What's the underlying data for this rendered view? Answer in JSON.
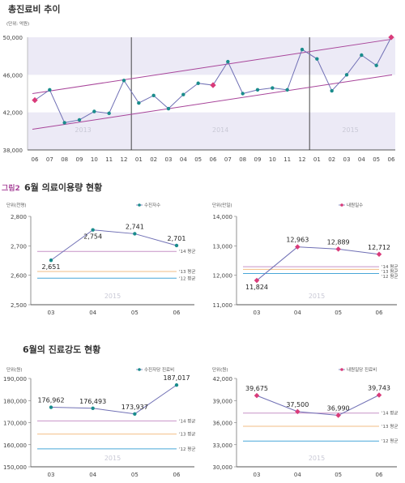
{
  "section_titles": {
    "main": "총진료비 추이",
    "fig2_prefix": "그림2",
    "fig2": "6월 의료이용량 현황",
    "fig3": "6월의 진료강도 현황"
  },
  "colors": {
    "teal": "#1a8c8c",
    "pink": "#d93b7a",
    "trend": "#a8459a",
    "line": "#7070b5",
    "band": "#eceaf6",
    "avg14": "#c792c7",
    "avg13": "#f2be86",
    "avg12": "#49a7d8"
  },
  "chart_data": [
    {
      "id": "total",
      "type": "line",
      "unit_label": "(단위: 억원)",
      "ylim": [
        38000,
        50000
      ],
      "y_ticks": [
        "38,000",
        "42,000",
        "46,000",
        "50,000"
      ],
      "x": [
        "06",
        "07",
        "08",
        "09",
        "10",
        "11",
        "12",
        "01",
        "02",
        "03",
        "04",
        "05",
        "06",
        "07",
        "08",
        "09",
        "10",
        "11",
        "12",
        "01",
        "02",
        "03",
        "04",
        "05",
        "06"
      ],
      "values": [
        43300,
        44400,
        40900,
        41200,
        42100,
        41900,
        45400,
        43000,
        43800,
        42400,
        43900,
        45100,
        44900,
        47400,
        44000,
        44400,
        44600,
        44400,
        48700,
        47700,
        44300,
        46000,
        48100,
        47000,
        50000
      ],
      "june_points": [
        0,
        12,
        24
      ],
      "year_labels": [
        "2013",
        "2014",
        "2015"
      ],
      "trend_upper": [
        44000,
        49800
      ],
      "trend_lower": [
        40200,
        46000
      ]
    },
    {
      "id": "patients",
      "type": "line",
      "unit_label": "단위(천명)",
      "legend": "수진자수",
      "ylim": [
        2500,
        2800
      ],
      "y_ticks": [
        "2,500",
        "2,600",
        "2,700",
        "2,800"
      ],
      "categories": [
        "03",
        "04",
        "05",
        "06"
      ],
      "values": [
        2651,
        2754,
        2741,
        2701
      ],
      "value_labels": [
        "2,651",
        "2,754",
        "2,741",
        "2,701"
      ],
      "year": "2015",
      "averages": [
        {
          "label": "'14 평균",
          "value": 2681
        },
        {
          "label": "'13 평균",
          "value": 2613
        },
        {
          "label": "'12 평균",
          "value": 2590
        }
      ]
    },
    {
      "id": "visits",
      "type": "line",
      "unit_label": "단위(만일)",
      "legend": "내원일수",
      "ylim": [
        11000,
        14000
      ],
      "y_ticks": [
        "11,000",
        "12,000",
        "13,000",
        "14,000"
      ],
      "categories": [
        "03",
        "04",
        "05",
        "06"
      ],
      "values": [
        11824,
        12963,
        12889,
        12712
      ],
      "value_labels": [
        "11,824",
        "12,963",
        "12,889",
        "12,712"
      ],
      "year": "2015",
      "averages": [
        {
          "label": "'14 평균",
          "value": 12290
        },
        {
          "label": "'13 평균",
          "value": 12200
        },
        {
          "label": "'12 평균",
          "value": 12060
        }
      ]
    },
    {
      "id": "cost_per_patient",
      "type": "line",
      "unit_label": "단위(원)",
      "legend": "수진자당 진료비",
      "ylim": [
        150000,
        190000
      ],
      "y_ticks": [
        "150,000",
        "160,000",
        "170,000",
        "180,000",
        "190,000"
      ],
      "categories": [
        "03",
        "04",
        "05",
        "06"
      ],
      "values": [
        176962,
        176493,
        173937,
        187017
      ],
      "value_labels": [
        "176,962",
        "176,493",
        "173,937",
        "187,017"
      ],
      "year": "2015",
      "averages": [
        {
          "label": "'14 평균",
          "value": 170800
        },
        {
          "label": "'13 평균",
          "value": 164800
        },
        {
          "label": "'12 평균",
          "value": 158100
        }
      ]
    },
    {
      "id": "cost_per_visit",
      "type": "line",
      "unit_label": "단위(원)",
      "legend": "내원일당 진료비",
      "ylim": [
        30000,
        42000
      ],
      "y_ticks": [
        "30,000",
        "33,000",
        "36,000",
        "39,000",
        "42,000"
      ],
      "categories": [
        "03",
        "04",
        "05",
        "06"
      ],
      "values": [
        39675,
        37500,
        36990,
        39743
      ],
      "value_labels": [
        "39,675",
        "37,500",
        "36,990",
        "39,743"
      ],
      "year": "2015",
      "averages": [
        {
          "label": "'14 평균",
          "value": 37300
        },
        {
          "label": "'13 평균",
          "value": 35500
        },
        {
          "label": "'12 평균",
          "value": 33500
        }
      ]
    }
  ]
}
